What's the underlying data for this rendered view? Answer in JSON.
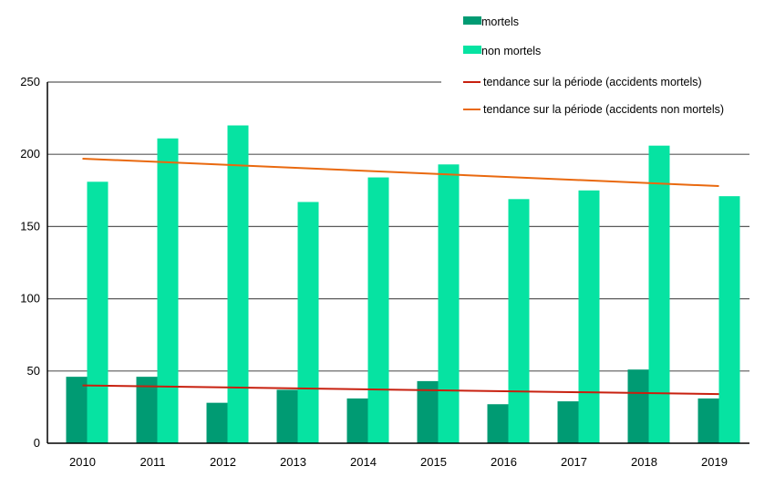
{
  "chart_data": {
    "type": "bar",
    "categories": [
      "2010",
      "2011",
      "2012",
      "2013",
      "2014",
      "2015",
      "2016",
      "2017",
      "2018",
      "2019"
    ],
    "series": [
      {
        "name": "mortels",
        "color": "#009b73",
        "values": [
          46,
          46,
          28,
          37,
          31,
          43,
          27,
          29,
          51,
          31
        ]
      },
      {
        "name": "non mortels",
        "color": "#06e3a2",
        "values": [
          181,
          211,
          220,
          167,
          184,
          193,
          169,
          175,
          206,
          171
        ]
      }
    ],
    "trendlines": [
      {
        "name": "tendance sur la période (accidents mortels)",
        "color": "#c8200f",
        "start": 40,
        "end": 34
      },
      {
        "name": "tendance sur la période (accidents non mortels)",
        "color": "#e9690f",
        "start": 197,
        "end": 178
      }
    ],
    "ylim": [
      0,
      250
    ],
    "yticks": [
      0,
      50,
      100,
      150,
      200,
      250
    ],
    "grid": true,
    "legend_position": "top-right",
    "title": "",
    "xlabel": "",
    "ylabel": ""
  }
}
